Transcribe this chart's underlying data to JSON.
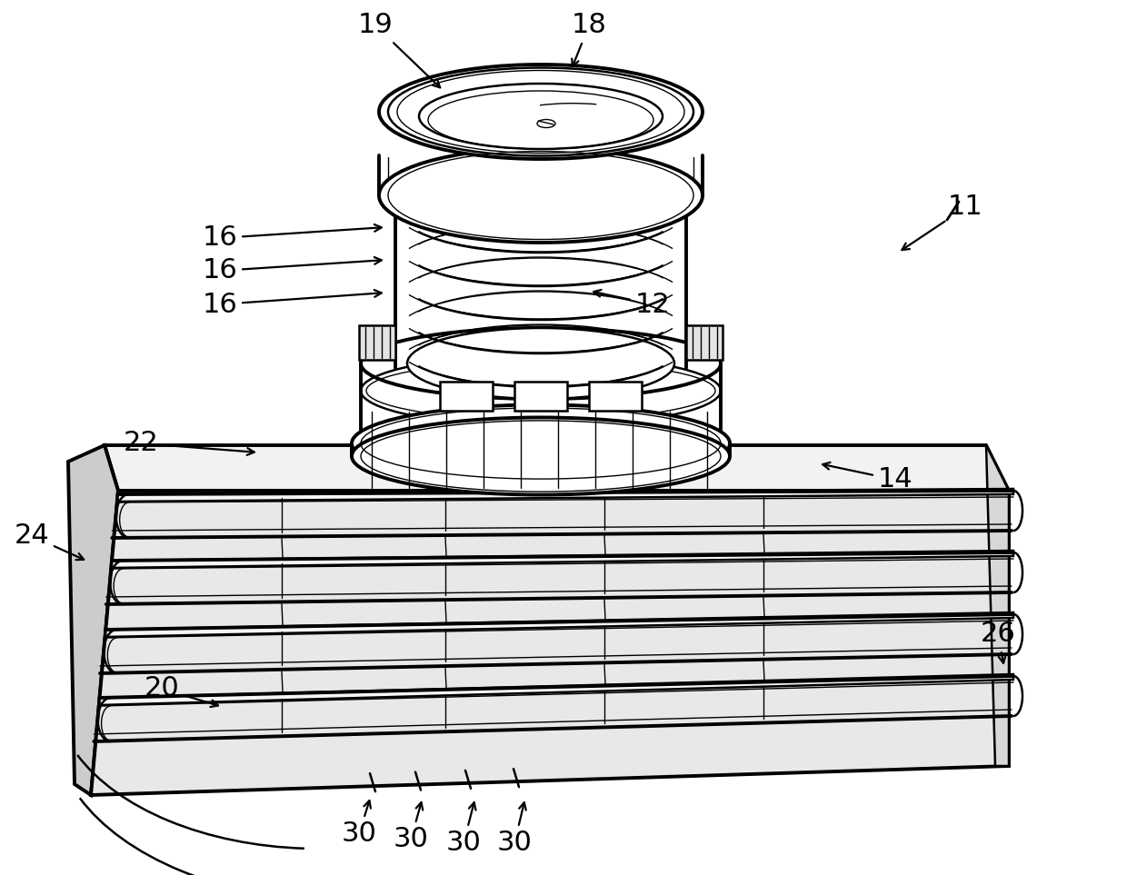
{
  "bg_color": "#ffffff",
  "line_color": "#000000",
  "fig_width": 12.4,
  "fig_height": 9.63,
  "dpi": 100
}
